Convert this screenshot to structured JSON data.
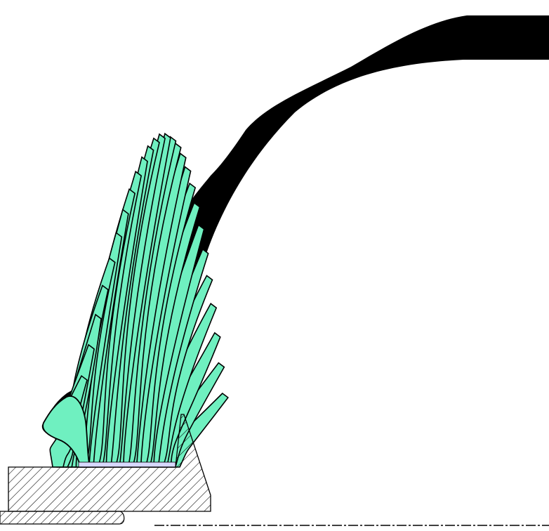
{
  "colors": {
    "background": "#ffffff",
    "fiber_fill": "#6ff0c0",
    "fiber_stroke": "#000000",
    "fiber_mass": "#000000",
    "hatch_stroke": "#000000",
    "base_fill": "#ffffff",
    "pad_fill": "#d8d8ff"
  },
  "diagram": {
    "fiber_count": 28
  }
}
